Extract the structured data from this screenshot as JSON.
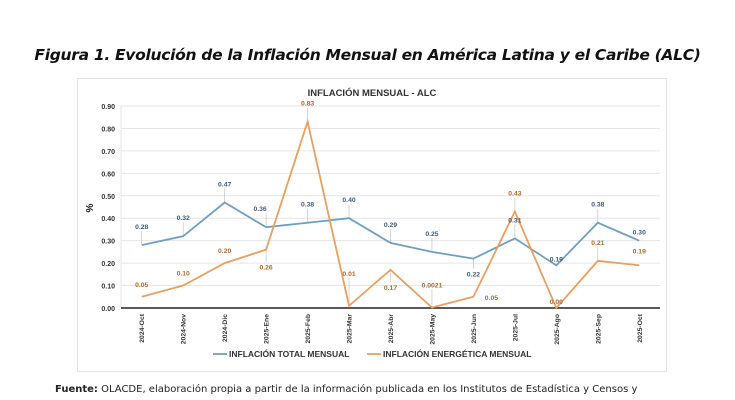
{
  "figure": {
    "title": "Figura 1. Evolución de la Inflación Mensual en América Latina y el Caribe (ALC)",
    "source_label": "Fuente:",
    "source_text": " OLACDE, elaboración propia a partir de la información publicada en los Institutos de Estadística y Censos y"
  },
  "chart_data": {
    "type": "line",
    "title": "INFLACIÓN MENSUAL - ALC",
    "xlabel": "",
    "ylabel": "%",
    "ylim": [
      0,
      0.9
    ],
    "yticks": [
      "0.00",
      "0.10",
      "0.20",
      "0.30",
      "0.40",
      "0.50",
      "0.60",
      "0.70",
      "0.80",
      "0.90"
    ],
    "grid": true,
    "legend_position": "bottom",
    "categories": [
      "2024-Oct",
      "2024-Nov",
      "2024-Dic",
      "2025-Ene",
      "2025-Feb",
      "2025-Mar",
      "2025-Abr",
      "2025-May",
      "2025-Jun",
      "2025-Jul",
      "2025-Ago",
      "2025-Sep",
      "2025-Oct"
    ],
    "series": [
      {
        "name": "INFLACIÓN TOTAL MENSUAL",
        "color": "#6f9fc0",
        "values": [
          0.28,
          0.32,
          0.47,
          0.36,
          0.38,
          0.4,
          0.29,
          0.25,
          0.22,
          0.31,
          0.19,
          0.38,
          0.3
        ],
        "labels": [
          "0.28",
          "0.32",
          "0.47",
          "0.36",
          "0.38",
          "0.40",
          "0.29",
          "0.25",
          "0.22",
          "0.31",
          "0.19",
          "0.38",
          "0.30"
        ]
      },
      {
        "name": "INFLACIÓN ENERGÉTICA MENSUAL",
        "color": "#e8a060",
        "values": [
          0.05,
          0.1,
          0.2,
          0.26,
          0.83,
          0.01,
          0.17,
          0.0021,
          0.05,
          0.43,
          0.0,
          0.21,
          0.19
        ],
        "labels": [
          "0.05",
          "0.10",
          "0.20",
          "0.26",
          "0.83",
          "0.01",
          "0.17",
          "0.0021",
          "0.05",
          "0.43",
          "0.00",
          "0.21",
          "0.19"
        ]
      }
    ]
  }
}
